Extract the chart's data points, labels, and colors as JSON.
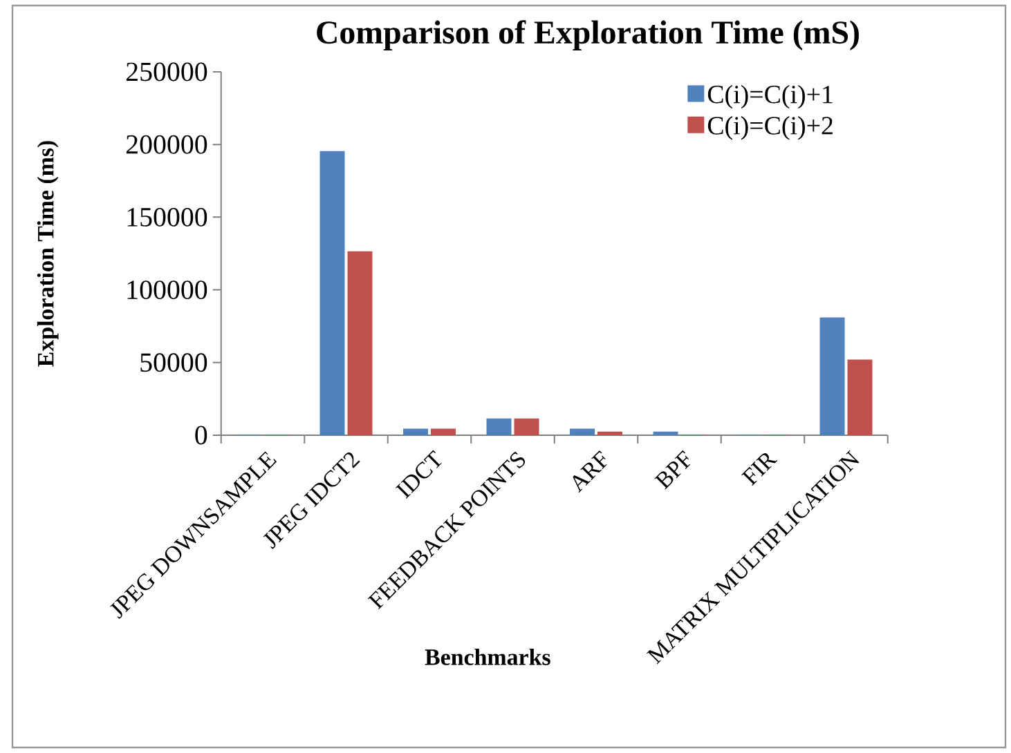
{
  "chart_data": {
    "type": "bar",
    "title": "Comparison of Exploration Time (mS)",
    "xlabel": "Benchmarks",
    "ylabel": "Exploration Time (ms)",
    "categories": [
      "JPEG DOWNSAMPLE",
      "JPEG IDCT2",
      "IDCT",
      "FEEDBACK POINTS",
      "ARF",
      "BPF",
      "FIR",
      "MATRIX MULTIPLICATION"
    ],
    "series": [
      {
        "name": "C(i)=C(i)+1",
        "color": "#4f81bd",
        "values": [
          500,
          195500,
          4500,
          11500,
          4500,
          2500,
          500,
          81000
        ]
      },
      {
        "name": "C(i)=C(i)+2",
        "color": "#c0504d",
        "values": [
          500,
          126500,
          4500,
          11500,
          2500,
          500,
          500,
          52000
        ]
      }
    ],
    "ylim": [
      0,
      250000
    ],
    "yticks": [
      0,
      50000,
      100000,
      150000,
      200000,
      250000
    ],
    "legend": "top right"
  }
}
